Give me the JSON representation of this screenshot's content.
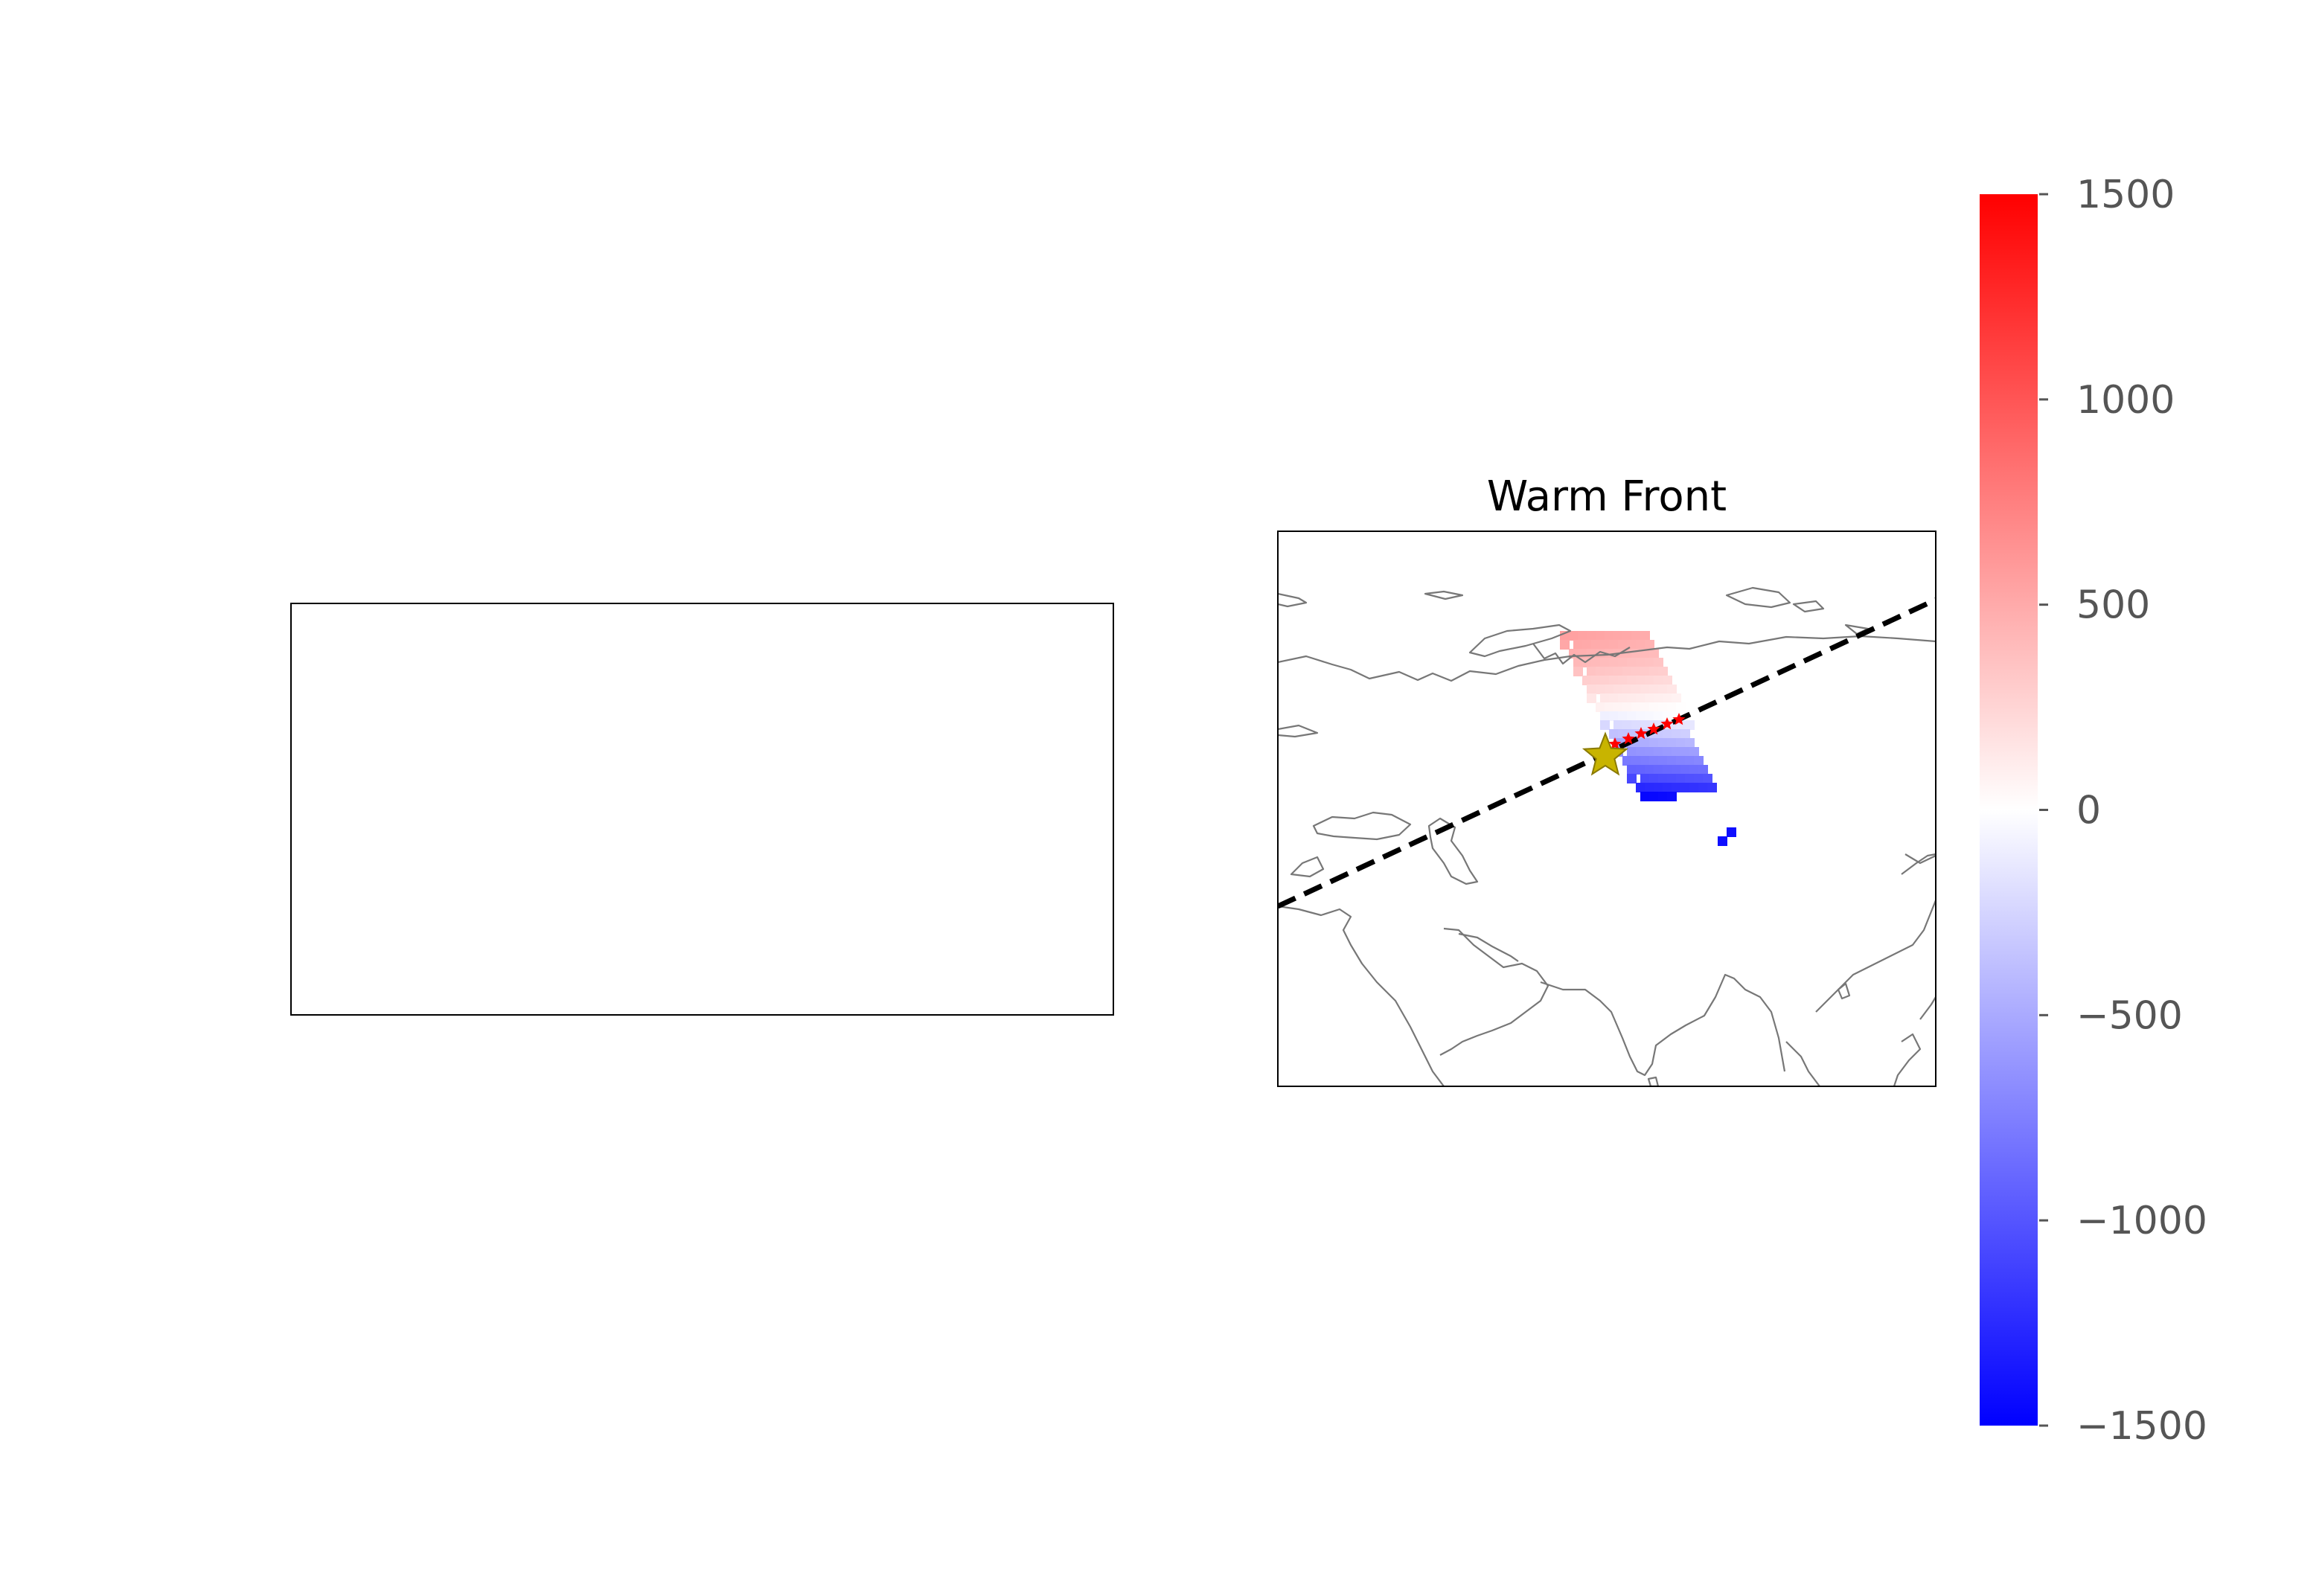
{
  "chart_data": [
    {
      "type": "heatmap",
      "title": "",
      "note": "empty axes panel"
    },
    {
      "type": "heatmap",
      "title": "Warm Front",
      "front_line_style": "dashed",
      "colors": {
        "positive": "#ff0000",
        "neutral": "#ffffff",
        "negative": "#0000ff",
        "front_line": "#000000",
        "front_stars": "#ff0000",
        "center_star": "#c8b400",
        "coastline": "#777777"
      },
      "colorbar": {
        "min": -1500,
        "max": 1500,
        "ticks": [
          1500,
          1000,
          500,
          0,
          -500,
          -1000,
          -1500
        ],
        "tick_labels": [
          "1500",
          "1000",
          "500",
          "0",
          "−500",
          "−1000",
          "−1500"
        ],
        "colormap": "bwr"
      },
      "grid_row_values": [
        520,
        480,
        430,
        380,
        320,
        250,
        180,
        110,
        40,
        -40,
        -180,
        -320,
        -460,
        -600,
        -740,
        -880,
        -1040,
        -1220,
        -1440
      ]
    }
  ]
}
